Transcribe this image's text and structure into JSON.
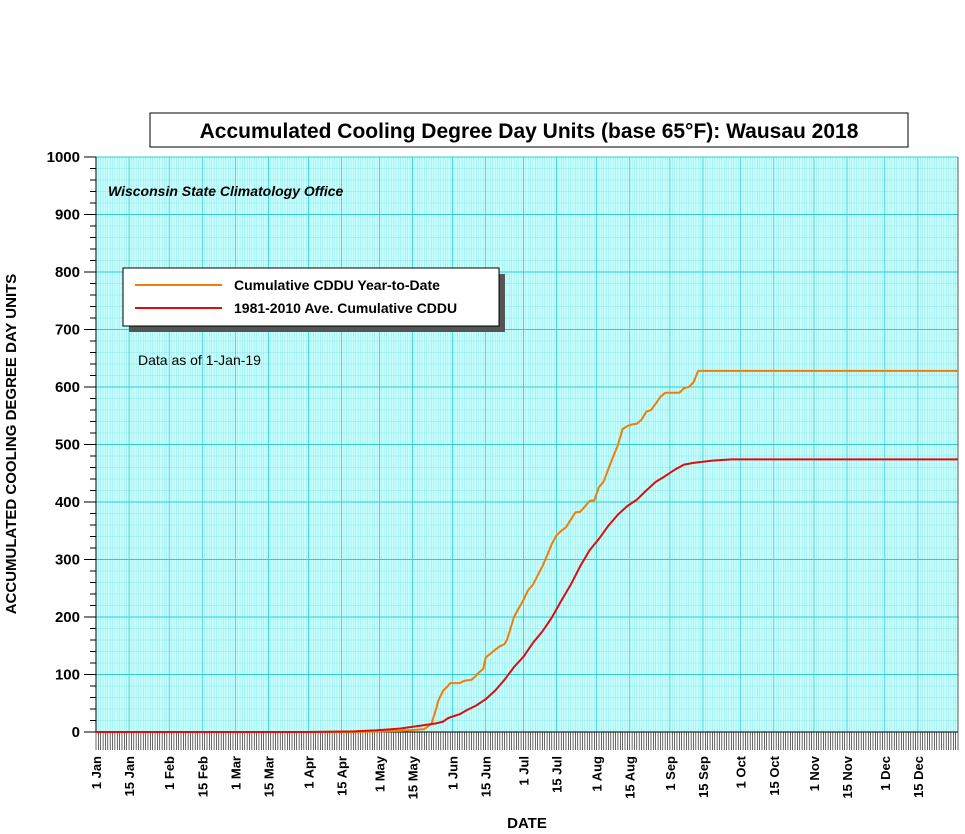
{
  "chart_data": {
    "type": "line",
    "title": "Accumulated Cooling Degree Day Units (base 65°F): Wausau 2018",
    "subtitle": "Wisconsin State Climatology Office",
    "note": "Data as of 1-Jan-19",
    "xlabel": "DATE",
    "ylabel": "ACCUMULATED COOLING DEGREE DAY UNITS",
    "ylim": [
      0,
      1000
    ],
    "yticks": [
      0,
      100,
      200,
      300,
      400,
      500,
      600,
      700,
      800,
      900,
      1000
    ],
    "xlim": [
      1,
      366
    ],
    "x_unit": "day of year",
    "x_tick_labels": [
      {
        "label": "1 Jan",
        "day": 1
      },
      {
        "label": "15 Jan",
        "day": 15
      },
      {
        "label": "1 Feb",
        "day": 32
      },
      {
        "label": "15 Feb",
        "day": 46
      },
      {
        "label": "1 Mar",
        "day": 60
      },
      {
        "label": "15 Mar",
        "day": 74
      },
      {
        "label": "1 Apr",
        "day": 91
      },
      {
        "label": "15 Apr",
        "day": 105
      },
      {
        "label": "1 May",
        "day": 121
      },
      {
        "label": "15 May",
        "day": 135
      },
      {
        "label": "1 Jun",
        "day": 152
      },
      {
        "label": "15 Jun",
        "day": 166
      },
      {
        "label": "1 Jul",
        "day": 182
      },
      {
        "label": "15 Jul",
        "day": 196
      },
      {
        "label": "1 Aug",
        "day": 213
      },
      {
        "label": "15 Aug",
        "day": 227
      },
      {
        "label": "1 Sep",
        "day": 244
      },
      {
        "label": "15 Sep",
        "day": 258
      },
      {
        "label": "1 Oct",
        "day": 274
      },
      {
        "label": "15 Oct",
        "day": 288
      },
      {
        "label": "1 Nov",
        "day": 305
      },
      {
        "label": "15 Nov",
        "day": 319
      },
      {
        "label": "1 Dec",
        "day": 335
      },
      {
        "label": "15 Dec",
        "day": 349
      }
    ],
    "grid": true,
    "legend_position": "top-left",
    "colors": {
      "plot_background": "#c8ffff",
      "grid_major": "#33cccc",
      "grid_minor": "#8fe6e6"
    },
    "series": [
      {
        "name": "Cumulative CDDU Year-to-Date",
        "color": "#f07d0a",
        "x": [
          1,
          110,
          130,
          140,
          143,
          145,
          146,
          148,
          150,
          151,
          155,
          157,
          160,
          162,
          163,
          165,
          166,
          167,
          168,
          170,
          172,
          174,
          175,
          176,
          178,
          180,
          182,
          184,
          186,
          188,
          190,
          192,
          194,
          196,
          198,
          200,
          202,
          204,
          206,
          208,
          210,
          212,
          214,
          216,
          218,
          220,
          222,
          224,
          226,
          228,
          230,
          232,
          234,
          236,
          238,
          240,
          242,
          244,
          246,
          248,
          250,
          252,
          254,
          256,
          258,
          259,
          260,
          366
        ],
        "y": [
          0,
          0,
          2,
          5,
          14,
          40,
          55,
          72,
          80,
          85,
          85,
          89,
          91,
          98,
          103,
          110,
          129,
          133,
          136,
          143,
          149,
          153,
          160,
          173,
          200,
          215,
          230,
          247,
          256,
          272,
          288,
          307,
          327,
          342,
          350,
          356,
          369,
          382,
          383,
          392,
          402,
          403,
          426,
          436,
          458,
          479,
          499,
          527,
          532,
          535,
          536,
          543,
          557,
          560,
          571,
          583,
          590,
          590,
          590,
          590,
          598,
          600,
          608,
          628,
          628,
          628,
          628,
          628
        ]
      },
      {
        "name": "1981-2010 Ave. Cumulative CDDU",
        "color": "#dd0d0d",
        "x": [
          1,
          90,
          110,
          120,
          130,
          140,
          145,
          148,
          150,
          152,
          155,
          158,
          162,
          166,
          170,
          174,
          178,
          182,
          186,
          190,
          194,
          198,
          202,
          206,
          210,
          214,
          218,
          222,
          226,
          230,
          234,
          238,
          242,
          246,
          250,
          254,
          258,
          262,
          266,
          270,
          280,
          300,
          366
        ],
        "y": [
          0,
          0,
          1,
          3,
          6,
          12,
          15,
          18,
          24,
          27,
          31,
          38,
          46,
          57,
          72,
          91,
          113,
          131,
          155,
          175,
          199,
          228,
          256,
          288,
          316,
          336,
          359,
          378,
          393,
          404,
          420,
          435,
          445,
          456,
          465,
          468,
          470,
          472,
          473,
          474,
          474,
          474,
          474
        ]
      }
    ]
  }
}
